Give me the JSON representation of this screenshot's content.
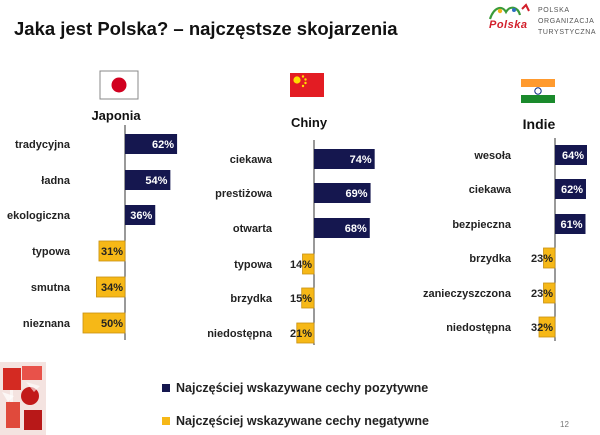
{
  "slide": {
    "title": "Jaka jest Polska? – najczęstsze skojarzenia",
    "page_number": "12",
    "logo": {
      "word": "Polska",
      "lines": [
        "POLSKA",
        "ORGANIZACJA",
        "TURYSTYCZNA"
      ]
    }
  },
  "colors": {
    "positive": "#15174f",
    "negative": "#f6b817"
  },
  "legend": [
    {
      "label": "Najczęściej wskazywane cechy pozytywne",
      "color": "#15174f"
    },
    {
      "label": "Najczęściej wskazywane cechy negatywne",
      "color": "#f6b817"
    }
  ],
  "chart_data": [
    {
      "type": "bar",
      "title": "Japonia",
      "flag": "japan-flag",
      "categories": [
        "tradycyjna",
        "ładna",
        "ekologiczna",
        "typowa",
        "smutna",
        "nieznana"
      ],
      "values": [
        62,
        54,
        36,
        31,
        34,
        50
      ],
      "value_labels": [
        "62%",
        "54%",
        "36%",
        "31%",
        "34%",
        "50%"
      ],
      "sentiment": [
        "positive",
        "positive",
        "positive",
        "negative",
        "negative",
        "negative"
      ]
    },
    {
      "type": "bar",
      "title": "Chiny",
      "flag": "china-flag",
      "categories": [
        "ciekawa",
        "prestiżowa",
        "otwarta",
        "typowa",
        "brzydka",
        "niedostępna"
      ],
      "values": [
        74,
        69,
        68,
        14,
        15,
        21
      ],
      "value_labels": [
        "74%",
        "69%",
        "68%",
        "14%",
        "15%",
        "21%"
      ],
      "sentiment": [
        "positive",
        "positive",
        "positive",
        "negative",
        "negative",
        "negative"
      ]
    },
    {
      "type": "bar",
      "title": "Indie",
      "flag": "india-flag",
      "categories": [
        "wesoła",
        "ciekawa",
        "bezpieczna",
        "brzydka",
        "zanieczyszczona",
        "niedostępna"
      ],
      "values": [
        64,
        62,
        61,
        23,
        23,
        32
      ],
      "value_labels": [
        "64%",
        "62%",
        "61%",
        "23%",
        "23%",
        "32%"
      ],
      "sentiment": [
        "positive",
        "positive",
        "positive",
        "negative",
        "negative",
        "negative"
      ]
    }
  ]
}
